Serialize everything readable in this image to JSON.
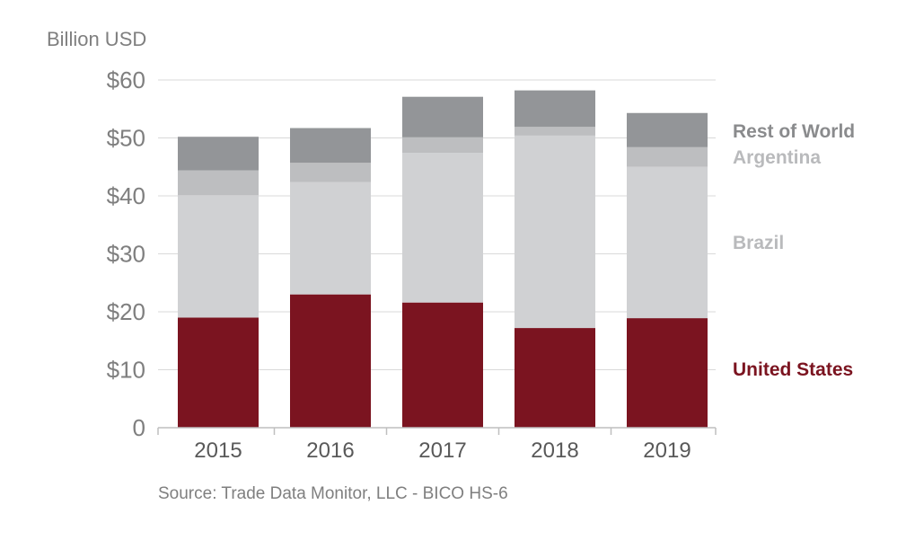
{
  "chart_data": {
    "type": "bar",
    "stacked": true,
    "unit_label": "Billion USD",
    "source": "Source: Trade Data Monitor, LLC - BICO HS-6",
    "categories": [
      "2015",
      "2016",
      "2017",
      "2018",
      "2019"
    ],
    "ylim": [
      0,
      60
    ],
    "yticks": [
      0,
      10,
      20,
      30,
      40,
      50,
      60
    ],
    "ytick_labels": [
      "0",
      "$10",
      "$20",
      "$30",
      "$40",
      "$50",
      "$60"
    ],
    "grid": true,
    "legend_placement": "right",
    "series": [
      {
        "name": "United States",
        "color": "#7b1420",
        "label_color": "#7b1420",
        "values": [
          19.0,
          23.0,
          21.6,
          17.2,
          18.9
        ]
      },
      {
        "name": "Brazil",
        "color": "#d0d1d3",
        "label_color": "#b9babc",
        "values": [
          21.1,
          19.4,
          25.8,
          33.2,
          26.1
        ]
      },
      {
        "name": "Argentina",
        "color": "#bdbec0",
        "label_color": "#b9babc",
        "values": [
          4.3,
          3.3,
          2.7,
          1.5,
          3.4
        ]
      },
      {
        "name": "Rest of World",
        "color": "#939598",
        "label_color": "#8a8b8d",
        "values": [
          5.8,
          6.0,
          7.0,
          6.3,
          5.9
        ]
      }
    ]
  }
}
